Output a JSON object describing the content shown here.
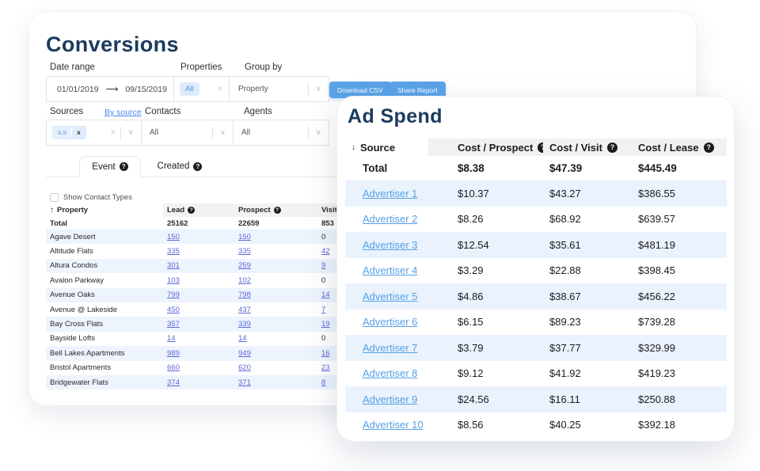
{
  "icons": {
    "help": "?",
    "chevron": "∨",
    "sort_asc": "↑",
    "sort_desc": "↓",
    "close": "×",
    "clear": "✕",
    "arrow_right": "⟶"
  },
  "colors": {
    "title_navy": "#1b3a5e",
    "button_blue": "#5ba3e8",
    "link_indigo": "#5b67d8",
    "link_blue": "#56a1e6",
    "row_alt_blue": "#e9f2fd",
    "header_gray": "#f2f2f2",
    "chip_bg": "#ddebfc",
    "chip_text": "#4a90e2"
  },
  "conversions": {
    "title": "Conversions",
    "filters": {
      "date_range": {
        "label": "Date range",
        "start": "01/01/2019",
        "end": "09/15/2019"
      },
      "properties": {
        "label": "Properties",
        "chip": "All"
      },
      "group_by": {
        "label": "Group by",
        "value": "Property"
      },
      "sources": {
        "label": "Sources",
        "by_source": "By source",
        "chip": "ILS",
        "chip_remove": "x"
      },
      "contacts": {
        "label": "Contacts",
        "value": "All"
      },
      "agents": {
        "label": "Agents",
        "value": "All"
      }
    },
    "buttons": {
      "download_csv": "Download CSV",
      "share_report": "Share Report"
    },
    "tabs": {
      "event": "Event",
      "created": "Created"
    },
    "show_contact_types": "Show Contact Types",
    "table": {
      "columns": [
        "Property",
        "Lead",
        "Prospect",
        "Visit"
      ],
      "total_row": {
        "label": "Total",
        "lead": "25162",
        "prospect": "22659",
        "visit": "853"
      },
      "rows": [
        {
          "property": "Agave Desert",
          "values": [
            {
              "text": "150",
              "link": true
            },
            {
              "text": "150",
              "link": true
            },
            {
              "text": "0",
              "link": false
            }
          ]
        },
        {
          "property": "Altitude Flats",
          "values": [
            {
              "text": "335",
              "link": true
            },
            {
              "text": "335",
              "link": true
            },
            {
              "text": "42",
              "link": true
            }
          ]
        },
        {
          "property": "Altura Condos",
          "values": [
            {
              "text": "301",
              "link": true
            },
            {
              "text": "259",
              "link": true
            },
            {
              "text": "9",
              "link": true
            }
          ]
        },
        {
          "property": "Avalon Parkway",
          "values": [
            {
              "text": "103",
              "link": true
            },
            {
              "text": "102",
              "link": true
            },
            {
              "text": "0",
              "link": false
            }
          ]
        },
        {
          "property": "Avenue Oaks",
          "values": [
            {
              "text": "799",
              "link": true
            },
            {
              "text": "798",
              "link": true
            },
            {
              "text": "14",
              "link": true
            }
          ]
        },
        {
          "property": "Avenue @ Lakeside",
          "values": [
            {
              "text": "450",
              "link": true
            },
            {
              "text": "437",
              "link": true
            },
            {
              "text": "7",
              "link": true
            }
          ]
        },
        {
          "property": "Bay Cross Flats",
          "values": [
            {
              "text": "357",
              "link": true
            },
            {
              "text": "339",
              "link": true
            },
            {
              "text": "19",
              "link": true
            }
          ]
        },
        {
          "property": "Bayside Lofts",
          "values": [
            {
              "text": "14",
              "link": true
            },
            {
              "text": "14",
              "link": true
            },
            {
              "text": "0",
              "link": false
            }
          ]
        },
        {
          "property": "Bell Lakes Apartments",
          "values": [
            {
              "text": "989",
              "link": true
            },
            {
              "text": "949",
              "link": true
            },
            {
              "text": "16",
              "link": true
            }
          ]
        },
        {
          "property": "Bristol Apartments",
          "values": [
            {
              "text": "660",
              "link": true
            },
            {
              "text": "620",
              "link": true
            },
            {
              "text": "23",
              "link": true
            }
          ]
        },
        {
          "property": "Bridgewater Flats",
          "values": [
            {
              "text": "374",
              "link": true
            },
            {
              "text": "371",
              "link": true
            },
            {
              "text": "8",
              "link": true
            }
          ]
        }
      ]
    }
  },
  "ad_spend": {
    "title": "Ad Spend",
    "table": {
      "columns": [
        "Source",
        "Cost / Prospect",
        "Cost / Visit",
        "Cost / Lease"
      ],
      "total_row": {
        "label": "Total",
        "cost_prospect": "$8.38",
        "cost_visit": "$47.39",
        "cost_lease": "$445.49"
      },
      "rows": [
        {
          "source": "Advertiser 1",
          "values": [
            "$10.37",
            "$43.27",
            "$386.55"
          ]
        },
        {
          "source": "Advertiser 2",
          "values": [
            "$8.26",
            "$68.92",
            "$639.57"
          ]
        },
        {
          "source": "Advertiser 3",
          "values": [
            "$12.54",
            "$35.61",
            "$481.19"
          ]
        },
        {
          "source": "Advertiser 4",
          "values": [
            "$3.29",
            "$22.88",
            "$398.45"
          ]
        },
        {
          "source": "Advertiser 5",
          "values": [
            "$4.86",
            "$38.67",
            "$456.22"
          ]
        },
        {
          "source": "Advertiser 6",
          "values": [
            "$6.15",
            "$89.23",
            "$739.28"
          ]
        },
        {
          "source": "Advertiser 7",
          "values": [
            "$3.79",
            "$37.77",
            "$329.99"
          ]
        },
        {
          "source": "Advertiser 8",
          "values": [
            "$9.12",
            "$41.92",
            "$419.23"
          ]
        },
        {
          "source": "Advertiser 9",
          "values": [
            "$24.56",
            "$16.11",
            "$250.88"
          ]
        },
        {
          "source": "Advertiser 10",
          "values": [
            "$8.56",
            "$40.25",
            "$392.18"
          ]
        }
      ]
    }
  }
}
